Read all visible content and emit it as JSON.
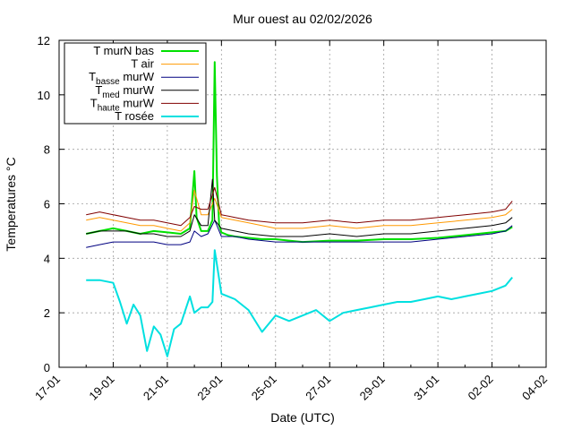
{
  "chart_data": {
    "type": "line",
    "title": "Mur ouest au 02/02/2026",
    "xlabel": "Date (UTC)",
    "ylabel": "Temperatures °C",
    "xlim": [
      "2026-01-17",
      "2026-02-04"
    ],
    "ylim": [
      0,
      12
    ],
    "grid": true,
    "legend_position": "top-left",
    "x_tick_labels": [
      "17-01",
      "19-01",
      "21-01",
      "23-01",
      "25-01",
      "27-01",
      "29-01",
      "31-01",
      "02-02",
      "04-02"
    ],
    "y_tick_labels": [
      "0",
      "2",
      "4",
      "6",
      "8",
      "10",
      "12"
    ],
    "legend": [
      {
        "text": "T murN bas",
        "main": "T murN bas",
        "sub": "",
        "tail": ""
      },
      {
        "text": "T air",
        "main": "T air",
        "sub": "",
        "tail": ""
      },
      {
        "text": "Tbasse murW",
        "main": "T",
        "sub": "basse",
        "tail": " murW"
      },
      {
        "text": "Tmed murW",
        "main": "T",
        "sub": "med",
        "tail": " murW"
      },
      {
        "text": "Thaute murW",
        "main": "T",
        "sub": "haute",
        "tail": " murW"
      },
      {
        "text": "T rosée",
        "main": "T rosée",
        "sub": "",
        "tail": ""
      }
    ],
    "series": [
      {
        "name": "T murN bas",
        "color": "#00e000",
        "width": 2,
        "x": [
          "2026-01-18T00:00",
          "2026-01-18T12:00",
          "2026-01-19T00:00",
          "2026-01-19T12:00",
          "2026-01-20T00:00",
          "2026-01-20T12:00",
          "2026-01-21T00:00",
          "2026-01-21T12:00",
          "2026-01-21T20:00",
          "2026-01-22T00:00",
          "2026-01-22T02:00",
          "2026-01-22T06:00",
          "2026-01-22T12:00",
          "2026-01-22T16:00",
          "2026-01-22T18:00",
          "2026-01-22T20:00",
          "2026-01-22T22:00",
          "2026-01-23T00:00",
          "2026-01-23T06:00",
          "2026-01-23T12:00",
          "2026-01-24T00:00",
          "2026-01-24T12:00",
          "2026-01-25T00:00",
          "2026-01-25T12:00",
          "2026-01-26T00:00",
          "2026-01-27T00:00",
          "2026-01-28T00:00",
          "2026-01-29T00:00",
          "2026-01-30T00:00",
          "2026-01-31T00:00",
          "2026-02-01T00:00",
          "2026-02-02T00:00",
          "2026-02-02T12:00",
          "2026-02-02T18:00"
        ],
        "y": [
          4.9,
          5.0,
          5.1,
          5.0,
          4.9,
          5.0,
          4.95,
          4.9,
          5.1,
          7.2,
          5.5,
          5.0,
          5.0,
          5.4,
          11.2,
          7.0,
          5.2,
          4.95,
          4.85,
          4.8,
          4.75,
          4.7,
          4.7,
          4.65,
          4.6,
          4.65,
          4.65,
          4.7,
          4.7,
          4.75,
          4.85,
          4.95,
          5.0,
          5.15
        ]
      },
      {
        "name": "T air",
        "color": "#ff9900",
        "width": 1,
        "x": [
          "2026-01-18T00:00",
          "2026-01-18T12:00",
          "2026-01-19T00:00",
          "2026-01-19T12:00",
          "2026-01-20T00:00",
          "2026-01-20T12:00",
          "2026-01-21T00:00",
          "2026-01-21T12:00",
          "2026-01-21T20:00",
          "2026-01-22T00:00",
          "2026-01-22T06:00",
          "2026-01-22T12:00",
          "2026-01-22T18:00",
          "2026-01-23T00:00",
          "2026-01-23T12:00",
          "2026-01-24T00:00",
          "2026-01-25T00:00",
          "2026-01-26T00:00",
          "2026-01-27T00:00",
          "2026-01-28T00:00",
          "2026-01-29T00:00",
          "2026-01-30T00:00",
          "2026-01-31T00:00",
          "2026-02-01T00:00",
          "2026-02-02T00:00",
          "2026-02-02T12:00",
          "2026-02-02T18:00"
        ],
        "y": [
          5.4,
          5.5,
          5.4,
          5.3,
          5.2,
          5.2,
          5.1,
          5.0,
          5.3,
          6.5,
          5.6,
          5.6,
          6.2,
          5.5,
          5.4,
          5.3,
          5.1,
          5.1,
          5.2,
          5.1,
          5.2,
          5.2,
          5.3,
          5.4,
          5.5,
          5.6,
          5.8
        ]
      },
      {
        "name": "Tbasse murW",
        "color": "#000080",
        "width": 1,
        "x": [
          "2026-01-18T00:00",
          "2026-01-18T12:00",
          "2026-01-19T00:00",
          "2026-01-19T12:00",
          "2026-01-20T00:00",
          "2026-01-20T12:00",
          "2026-01-21T00:00",
          "2026-01-21T12:00",
          "2026-01-21T20:00",
          "2026-01-22T00:00",
          "2026-01-22T06:00",
          "2026-01-22T12:00",
          "2026-01-22T18:00",
          "2026-01-23T00:00",
          "2026-01-23T12:00",
          "2026-01-24T00:00",
          "2026-01-25T00:00",
          "2026-01-26T00:00",
          "2026-01-27T00:00",
          "2026-01-28T00:00",
          "2026-01-29T00:00",
          "2026-01-30T00:00",
          "2026-01-31T00:00",
          "2026-02-01T00:00",
          "2026-02-02T00:00",
          "2026-02-02T12:00",
          "2026-02-02T18:00"
        ],
        "y": [
          4.4,
          4.5,
          4.6,
          4.6,
          4.6,
          4.6,
          4.5,
          4.5,
          4.6,
          5.0,
          4.8,
          4.9,
          5.4,
          4.8,
          4.8,
          4.7,
          4.6,
          4.6,
          4.6,
          4.6,
          4.6,
          4.6,
          4.7,
          4.8,
          4.9,
          5.0,
          5.2
        ]
      },
      {
        "name": "Tmed murW",
        "color": "#000000",
        "width": 1,
        "x": [
          "2026-01-18T00:00",
          "2026-01-18T12:00",
          "2026-01-19T00:00",
          "2026-01-19T12:00",
          "2026-01-20T00:00",
          "2026-01-20T12:00",
          "2026-01-21T00:00",
          "2026-01-21T12:00",
          "2026-01-21T20:00",
          "2026-01-22T00:00",
          "2026-01-22T06:00",
          "2026-01-22T12:00",
          "2026-01-22T16:00",
          "2026-01-22T18:00",
          "2026-01-23T00:00",
          "2026-01-23T12:00",
          "2026-01-24T00:00",
          "2026-01-25T00:00",
          "2026-01-26T00:00",
          "2026-01-27T00:00",
          "2026-01-28T00:00",
          "2026-01-29T00:00",
          "2026-01-30T00:00",
          "2026-01-31T00:00",
          "2026-02-01T00:00",
          "2026-02-02T00:00",
          "2026-02-02T12:00",
          "2026-02-02T18:00"
        ],
        "y": [
          4.9,
          5.0,
          5.0,
          5.0,
          4.9,
          4.9,
          4.8,
          4.8,
          5.0,
          5.6,
          5.2,
          5.2,
          6.9,
          5.4,
          5.1,
          5.0,
          4.9,
          4.8,
          4.8,
          4.9,
          4.8,
          4.9,
          4.9,
          5.0,
          5.1,
          5.2,
          5.3,
          5.5
        ]
      },
      {
        "name": "Thaute murW",
        "color": "#800000",
        "width": 1,
        "x": [
          "2026-01-18T00:00",
          "2026-01-18T12:00",
          "2026-01-19T00:00",
          "2026-01-19T12:00",
          "2026-01-20T00:00",
          "2026-01-20T12:00",
          "2026-01-21T00:00",
          "2026-01-21T12:00",
          "2026-01-21T20:00",
          "2026-01-22T00:00",
          "2026-01-22T06:00",
          "2026-01-22T12:00",
          "2026-01-22T18:00",
          "2026-01-23T00:00",
          "2026-01-23T12:00",
          "2026-01-24T00:00",
          "2026-01-25T00:00",
          "2026-01-26T00:00",
          "2026-01-27T00:00",
          "2026-01-28T00:00",
          "2026-01-29T00:00",
          "2026-01-30T00:00",
          "2026-01-31T00:00",
          "2026-02-01T00:00",
          "2026-02-02T00:00",
          "2026-02-02T12:00",
          "2026-02-02T18:00"
        ],
        "y": [
          5.6,
          5.7,
          5.6,
          5.5,
          5.4,
          5.4,
          5.3,
          5.2,
          5.5,
          5.9,
          5.8,
          5.8,
          6.6,
          5.6,
          5.5,
          5.4,
          5.3,
          5.3,
          5.4,
          5.3,
          5.4,
          5.4,
          5.5,
          5.6,
          5.7,
          5.8,
          6.1
        ]
      },
      {
        "name": "T rosée",
        "color": "#00e0e0",
        "width": 2,
        "x": [
          "2026-01-18T00:00",
          "2026-01-18T12:00",
          "2026-01-19T00:00",
          "2026-01-19T06:00",
          "2026-01-19T12:00",
          "2026-01-19T18:00",
          "2026-01-20T00:00",
          "2026-01-20T06:00",
          "2026-01-20T12:00",
          "2026-01-20T18:00",
          "2026-01-21T00:00",
          "2026-01-21T06:00",
          "2026-01-21T12:00",
          "2026-01-21T20:00",
          "2026-01-22T00:00",
          "2026-01-22T06:00",
          "2026-01-22T12:00",
          "2026-01-22T16:00",
          "2026-01-22T18:00",
          "2026-01-23T00:00",
          "2026-01-23T06:00",
          "2026-01-23T12:00",
          "2026-01-24T00:00",
          "2026-01-24T12:00",
          "2026-01-25T00:00",
          "2026-01-25T12:00",
          "2026-01-26T00:00",
          "2026-01-26T12:00",
          "2026-01-27T00:00",
          "2026-01-27T12:00",
          "2026-01-28T00:00",
          "2026-01-28T12:00",
          "2026-01-29T00:00",
          "2026-01-29T12:00",
          "2026-01-30T00:00",
          "2026-01-30T12:00",
          "2026-01-31T00:00",
          "2026-01-31T12:00",
          "2026-02-01T00:00",
          "2026-02-01T12:00",
          "2026-02-02T00:00",
          "2026-02-02T12:00",
          "2026-02-02T18:00"
        ],
        "y": [
          3.2,
          3.2,
          3.1,
          2.4,
          1.6,
          2.3,
          1.9,
          0.6,
          1.5,
          1.2,
          0.4,
          1.4,
          1.6,
          2.6,
          2.0,
          2.2,
          2.2,
          2.4,
          4.3,
          2.7,
          2.6,
          2.5,
          2.1,
          1.3,
          1.9,
          1.7,
          1.9,
          2.1,
          1.7,
          2.0,
          2.1,
          2.2,
          2.3,
          2.4,
          2.4,
          2.5,
          2.6,
          2.5,
          2.6,
          2.7,
          2.8,
          3.0,
          3.3
        ]
      }
    ]
  }
}
